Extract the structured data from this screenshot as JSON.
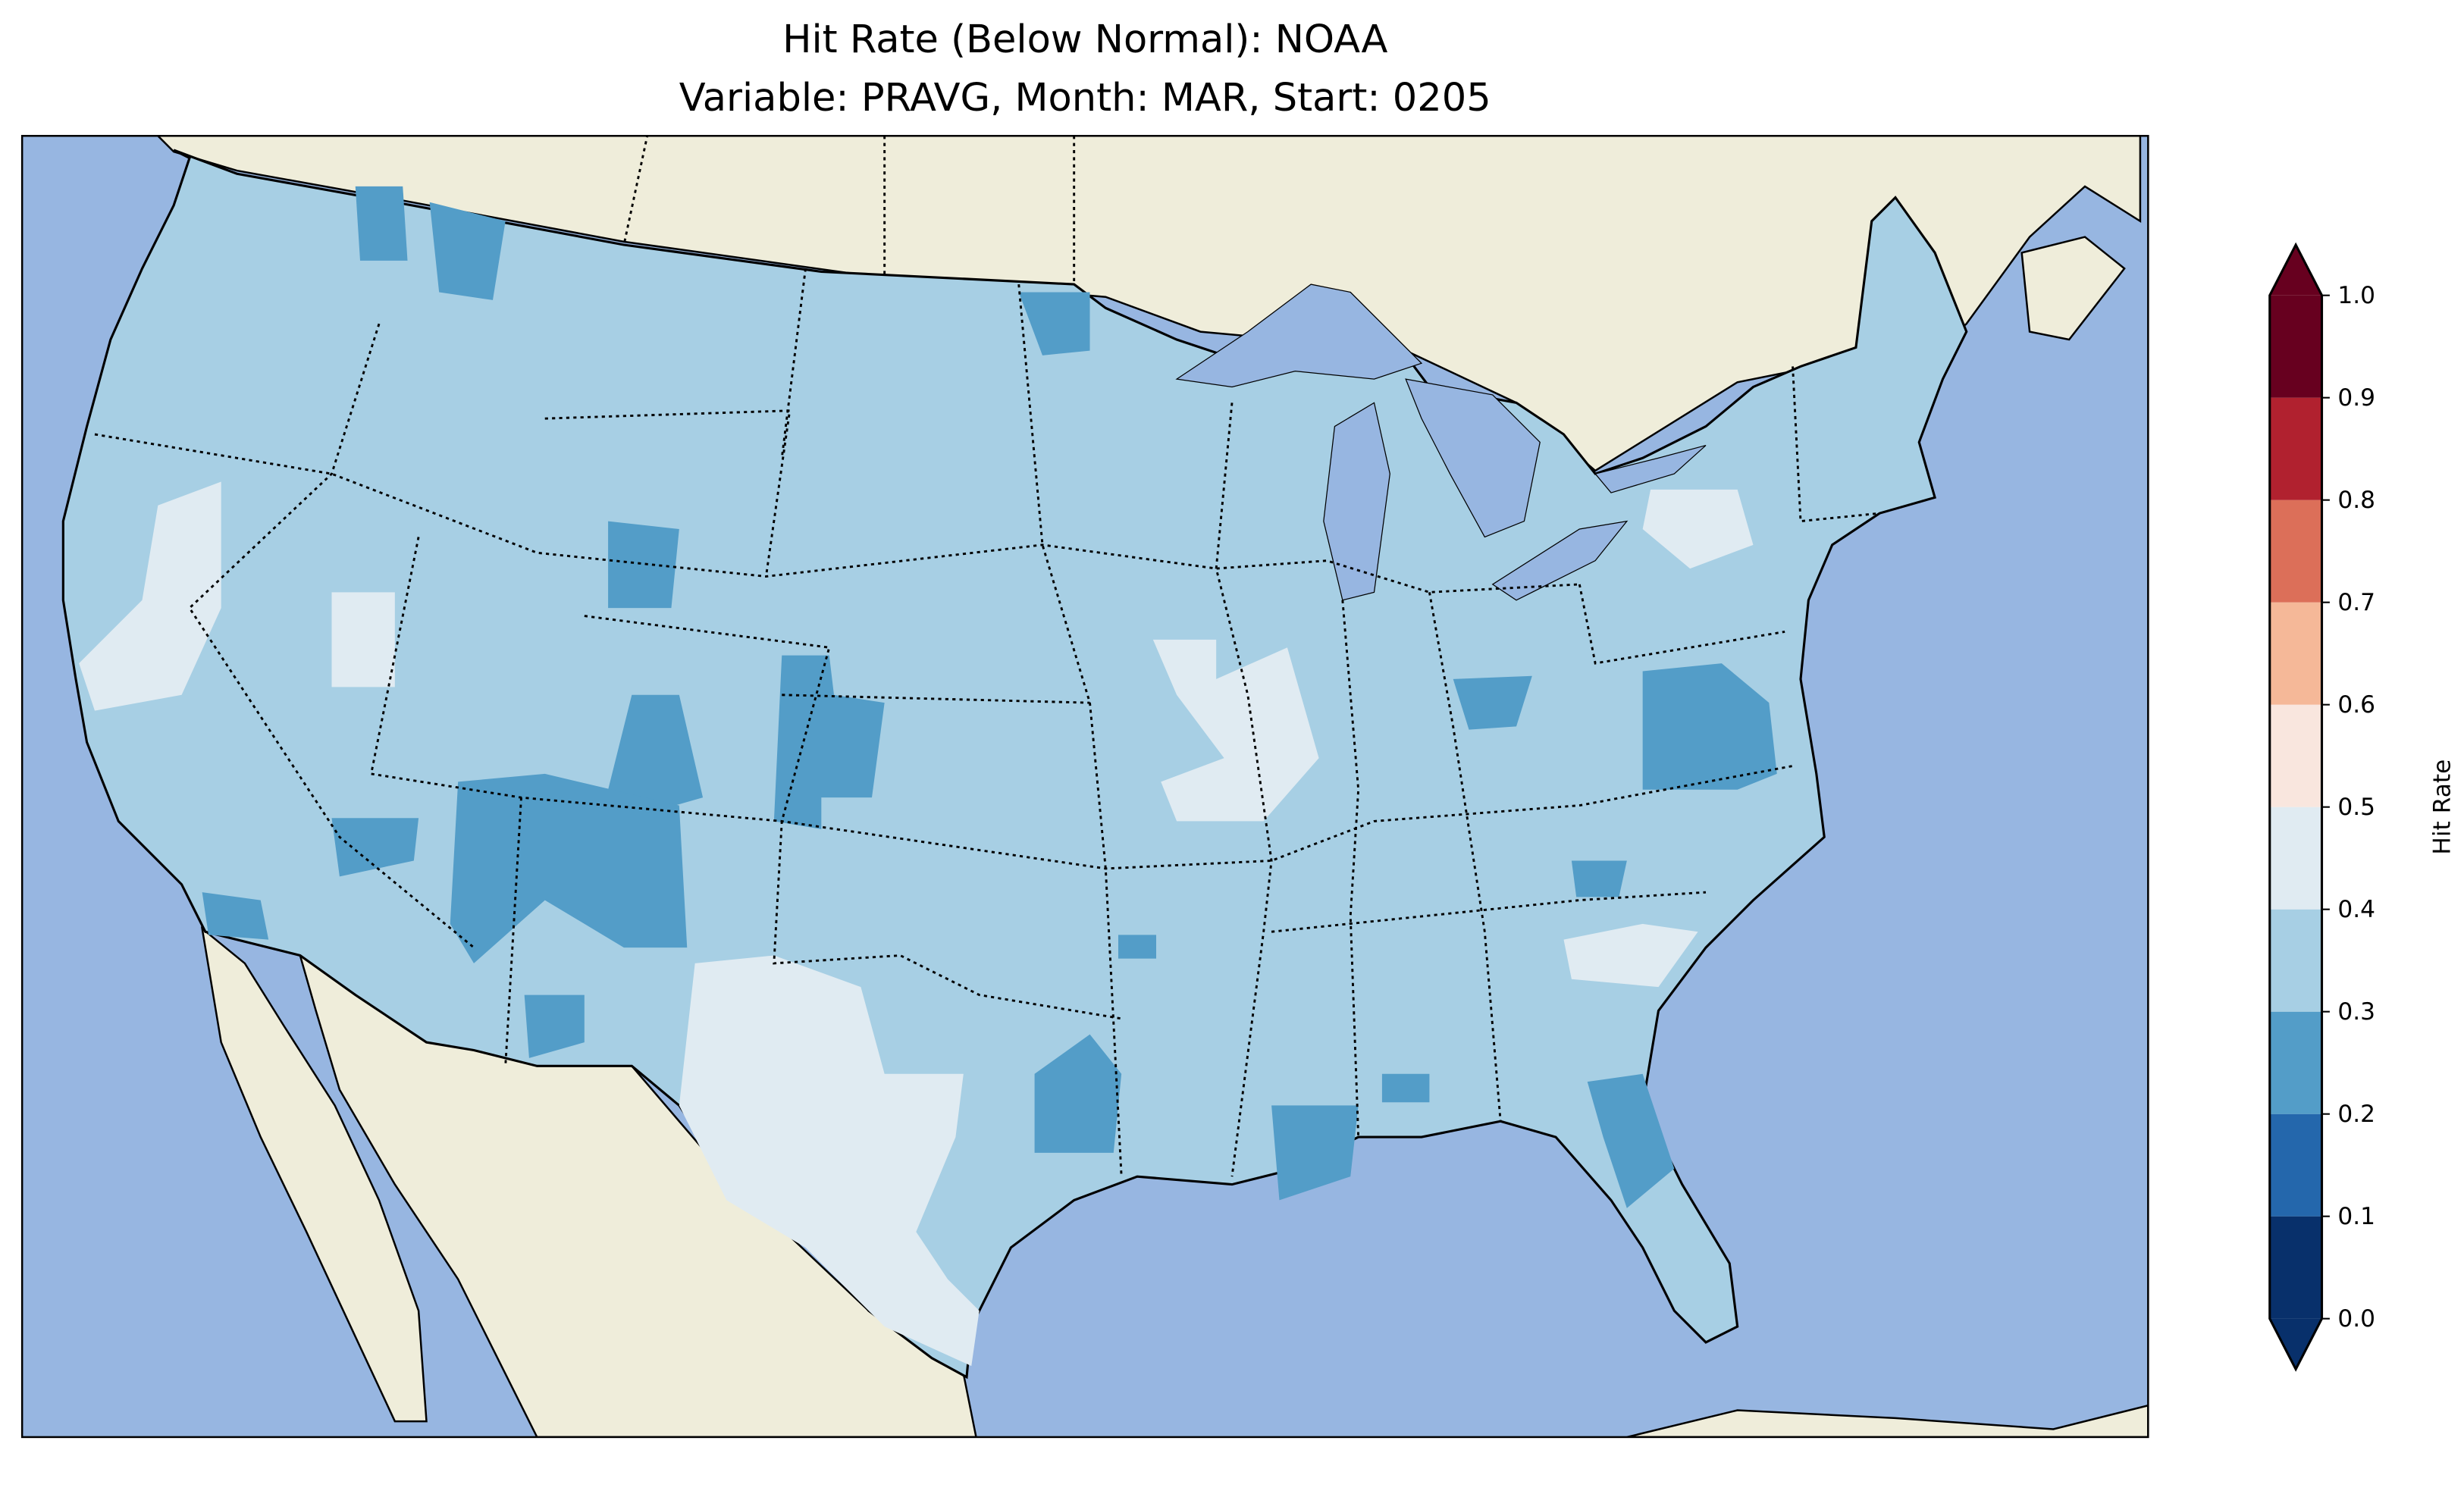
{
  "title_line1": "Hit Rate (Below Normal): NOAA",
  "title_line2": "Variable: PRAVG, Month: MAR, Start: 0205",
  "colors": {
    "ocean": "#97b6e1",
    "land": "#efedda",
    "lakes": "#97b6e1"
  },
  "chart_data": {
    "type": "heatmap",
    "title": "Hit Rate (Below Normal): NOAA\nVariable: PRAVG, Month: MAR, Start: 0205",
    "colorbar": {
      "label": "Hit Rate",
      "range": [
        0.0,
        1.0
      ],
      "extend": "both",
      "ticks": [
        "0.0",
        "0.1",
        "0.2",
        "0.3",
        "0.4",
        "0.5",
        "0.6",
        "0.7",
        "0.8",
        "0.9",
        "1.0"
      ],
      "bins": [
        {
          "min": 0.0,
          "max": 0.1,
          "color": "#08306b"
        },
        {
          "min": 0.1,
          "max": 0.2,
          "color": "#2467ac"
        },
        {
          "min": 0.2,
          "max": 0.3,
          "color": "#539dc8"
        },
        {
          "min": 0.3,
          "max": 0.4,
          "color": "#a7cfe4"
        },
        {
          "min": 0.4,
          "max": 0.5,
          "color": "#e0ebf2"
        },
        {
          "min": 0.5,
          "max": 0.6,
          "color": "#f9e6de"
        },
        {
          "min": 0.6,
          "max": 0.7,
          "color": "#f5b898"
        },
        {
          "min": 0.7,
          "max": 0.8,
          "color": "#dc6f59"
        },
        {
          "min": 0.8,
          "max": 0.9,
          "color": "#b1212f"
        },
        {
          "min": 0.9,
          "max": 1.0,
          "color": "#67001f"
        }
      ]
    },
    "dominant_value_bin": [
      0.3,
      0.4
    ]
  }
}
